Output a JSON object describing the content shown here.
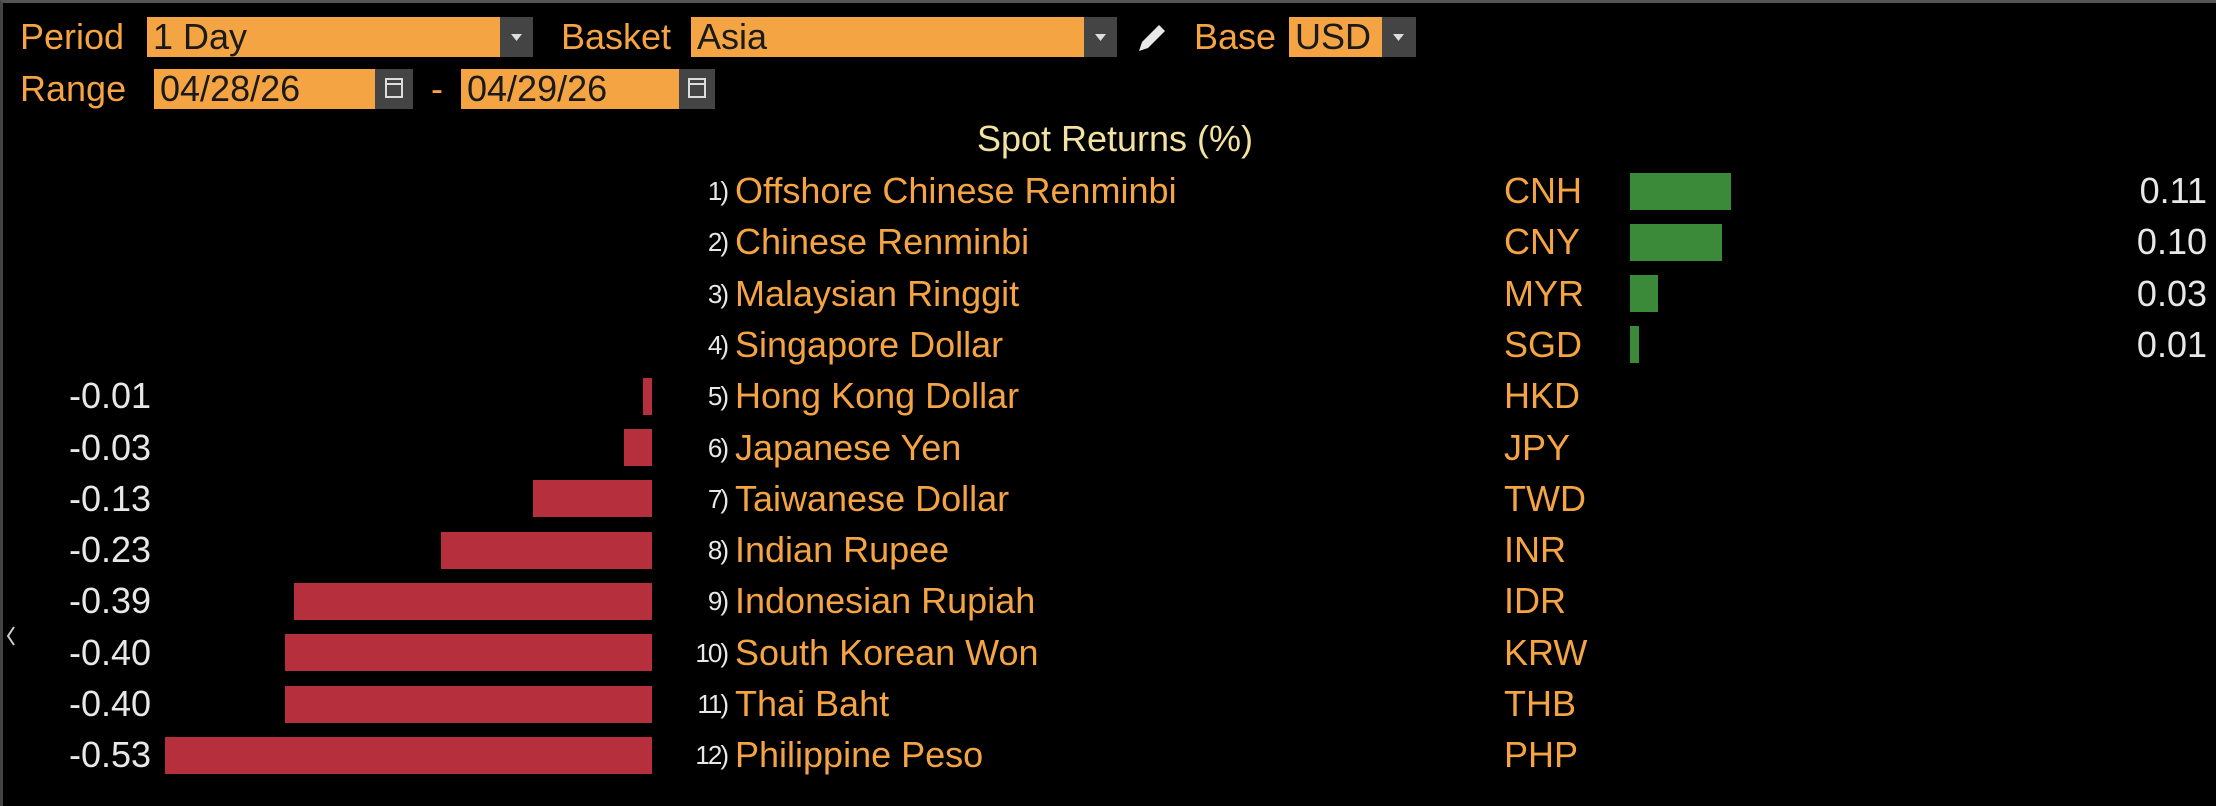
{
  "controls": {
    "period_label": "Period",
    "period": "1 Day",
    "basket_label": "Basket",
    "basket": "Asia",
    "base_label": "Base",
    "base": "USD",
    "range_label": "Range",
    "range_start": "04/28/26",
    "range_separator": "-",
    "range_end": "04/29/26"
  },
  "title": "Spot Returns (%)",
  "rows": [
    {
      "index": "1)",
      "name": "Offshore Chinese Renminbi",
      "code": "CNH",
      "value": 0.11,
      "value_label": "0.11"
    },
    {
      "index": "2)",
      "name": "Chinese Renminbi",
      "code": "CNY",
      "value": 0.1,
      "value_label": "0.10"
    },
    {
      "index": "3)",
      "name": "Malaysian Ringgit",
      "code": "MYR",
      "value": 0.03,
      "value_label": "0.03"
    },
    {
      "index": "4)",
      "name": "Singapore Dollar",
      "code": "SGD",
      "value": 0.01,
      "value_label": "0.01"
    },
    {
      "index": "5)",
      "name": "Hong Kong Dollar",
      "code": "HKD",
      "value": -0.01,
      "value_label": "-0.01"
    },
    {
      "index": "6)",
      "name": "Japanese Yen",
      "code": "JPY",
      "value": -0.03,
      "value_label": "-0.03"
    },
    {
      "index": "7)",
      "name": "Taiwanese Dollar",
      "code": "TWD",
      "value": -0.13,
      "value_label": "-0.13"
    },
    {
      "index": "8)",
      "name": "Indian Rupee",
      "code": "INR",
      "value": -0.23,
      "value_label": "-0.23"
    },
    {
      "index": "9)",
      "name": "Indonesian Rupiah",
      "code": "IDR",
      "value": -0.39,
      "value_label": "-0.39"
    },
    {
      "index": "10)",
      "name": "South Korean Won",
      "code": "KRW",
      "value": -0.4,
      "value_label": "-0.40"
    },
    {
      "index": "11)",
      "name": "Thai Baht",
      "code": "THB",
      "value": -0.4,
      "value_label": "-0.40"
    },
    {
      "index": "12)",
      "name": "Philippine Peso",
      "code": "PHP",
      "value": -0.53,
      "value_label": "-0.53"
    }
  ]
}
